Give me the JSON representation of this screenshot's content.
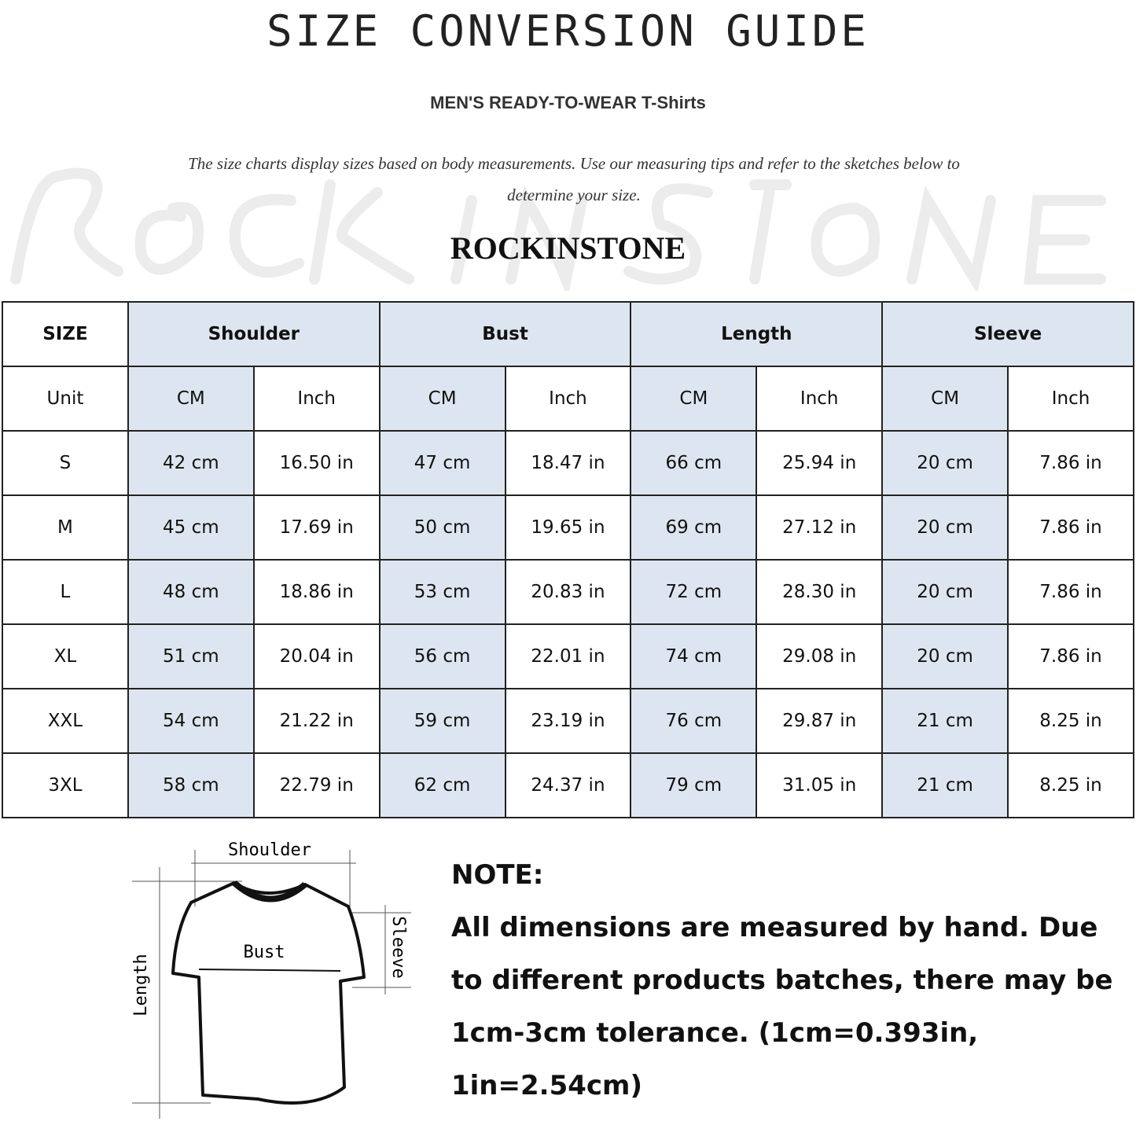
{
  "header": {
    "title": "SIZE CONVERSION GUIDE",
    "subtitle": "MEN'S READY-TO-WEAR T-Shirts",
    "description": "The size charts display sizes based on body measurements. Use our measuring tips and refer to the sketches below to determine your size.",
    "brand": "ROCKINSTONE",
    "watermark": "ROCKINSTONE"
  },
  "colors": {
    "highlight": "#dde6f0",
    "border": "#222222"
  },
  "table": {
    "size_label": "SIZE",
    "unit_label": "Unit",
    "groups": [
      "Shoulder",
      "Bust",
      "Length",
      "Sleeve"
    ],
    "units": [
      "CM",
      "Inch"
    ],
    "rows": [
      {
        "size": "S",
        "values": [
          "42 cm",
          "16.50 in",
          "47 cm",
          "18.47  in",
          "66 cm",
          "25.94  in",
          "20 cm",
          "7.86  in"
        ]
      },
      {
        "size": "M",
        "values": [
          "45 cm",
          "17.69  in",
          "50 cm",
          "19.65  in",
          "69 cm",
          "27.12  in",
          "20 cm",
          "7.86  in"
        ]
      },
      {
        "size": "L",
        "values": [
          "48 cm",
          "18.86  in",
          "53 cm",
          "20.83  in",
          "72 cm",
          "28.30  in",
          "20 cm",
          "7.86  in"
        ]
      },
      {
        "size": "XL",
        "values": [
          "51 cm",
          "20.04  in",
          "56 cm",
          "22.01  in",
          "74 cm",
          "29.08  in",
          "20 cm",
          "7.86  in"
        ]
      },
      {
        "size": "XXL",
        "values": [
          "54 cm",
          "21.22  in",
          "59 cm",
          "23.19  in",
          "76 cm",
          "29.87  in",
          "21 cm",
          "8.25  in"
        ]
      },
      {
        "size": "3XL",
        "values": [
          "58 cm",
          "22.79  in",
          "62 cm",
          "24.37  in",
          "79 cm",
          "31.05  in",
          "21 cm",
          "8.25  in"
        ]
      }
    ]
  },
  "sketch": {
    "shoulder": "Shoulder",
    "bust": "Bust",
    "length": "Length",
    "sleeve": "Sleeve"
  },
  "note": {
    "heading": "NOTE:",
    "text": "All dimensions are measured by hand. Due to different products batches, there may be 1cm-3cm tolerance. (1cm=0.393in, 1in=2.54cm)"
  }
}
